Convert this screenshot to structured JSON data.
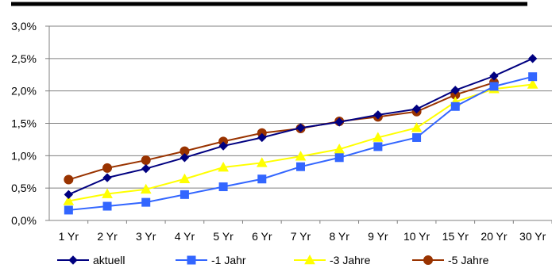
{
  "chart_data": {
    "type": "line",
    "title": "",
    "xlabel": "",
    "ylabel": "",
    "categories": [
      "1 Yr",
      "2 Yr",
      "3 Yr",
      "4 Yr",
      "5 Yr",
      "6 Yr",
      "7 Yr",
      "8 Yr",
      "9 Yr",
      "10 Yr",
      "15 Yr",
      "20 Yr",
      "30 Yr"
    ],
    "ylim": [
      0,
      3.0
    ],
    "y_ticks": [
      "0,0%",
      "0,5%",
      "1,0%",
      "1,5%",
      "2,0%",
      "2,5%",
      "3,0%"
    ],
    "grid": true,
    "legend_position": "bottom",
    "series": [
      {
        "name": "aktuell",
        "color": "#000080",
        "marker": "diamond",
        "values": [
          0.4,
          0.66,
          0.8,
          0.97,
          1.15,
          1.28,
          1.43,
          1.52,
          1.63,
          1.72,
          2.01,
          2.23,
          2.5
        ]
      },
      {
        "name": "-1 Jahr",
        "color": "#3366FF",
        "marker": "square",
        "values": [
          0.16,
          0.22,
          0.28,
          0.4,
          0.52,
          0.64,
          0.83,
          0.97,
          1.14,
          1.28,
          1.76,
          2.07,
          2.22
        ]
      },
      {
        "name": "-3 Jahre",
        "color": "#FFFF00",
        "marker": "triangle",
        "values": [
          0.3,
          0.41,
          0.48,
          0.64,
          0.82,
          0.89,
          0.99,
          1.1,
          1.28,
          1.43,
          1.83,
          2.03,
          2.1
        ]
      },
      {
        "name": "-5 Jahre",
        "color": "#993300",
        "marker": "circle",
        "values": [
          0.63,
          0.81,
          0.93,
          1.07,
          1.22,
          1.35,
          1.42,
          1.53,
          1.6,
          1.68,
          1.94,
          2.13,
          null
        ]
      }
    ]
  }
}
